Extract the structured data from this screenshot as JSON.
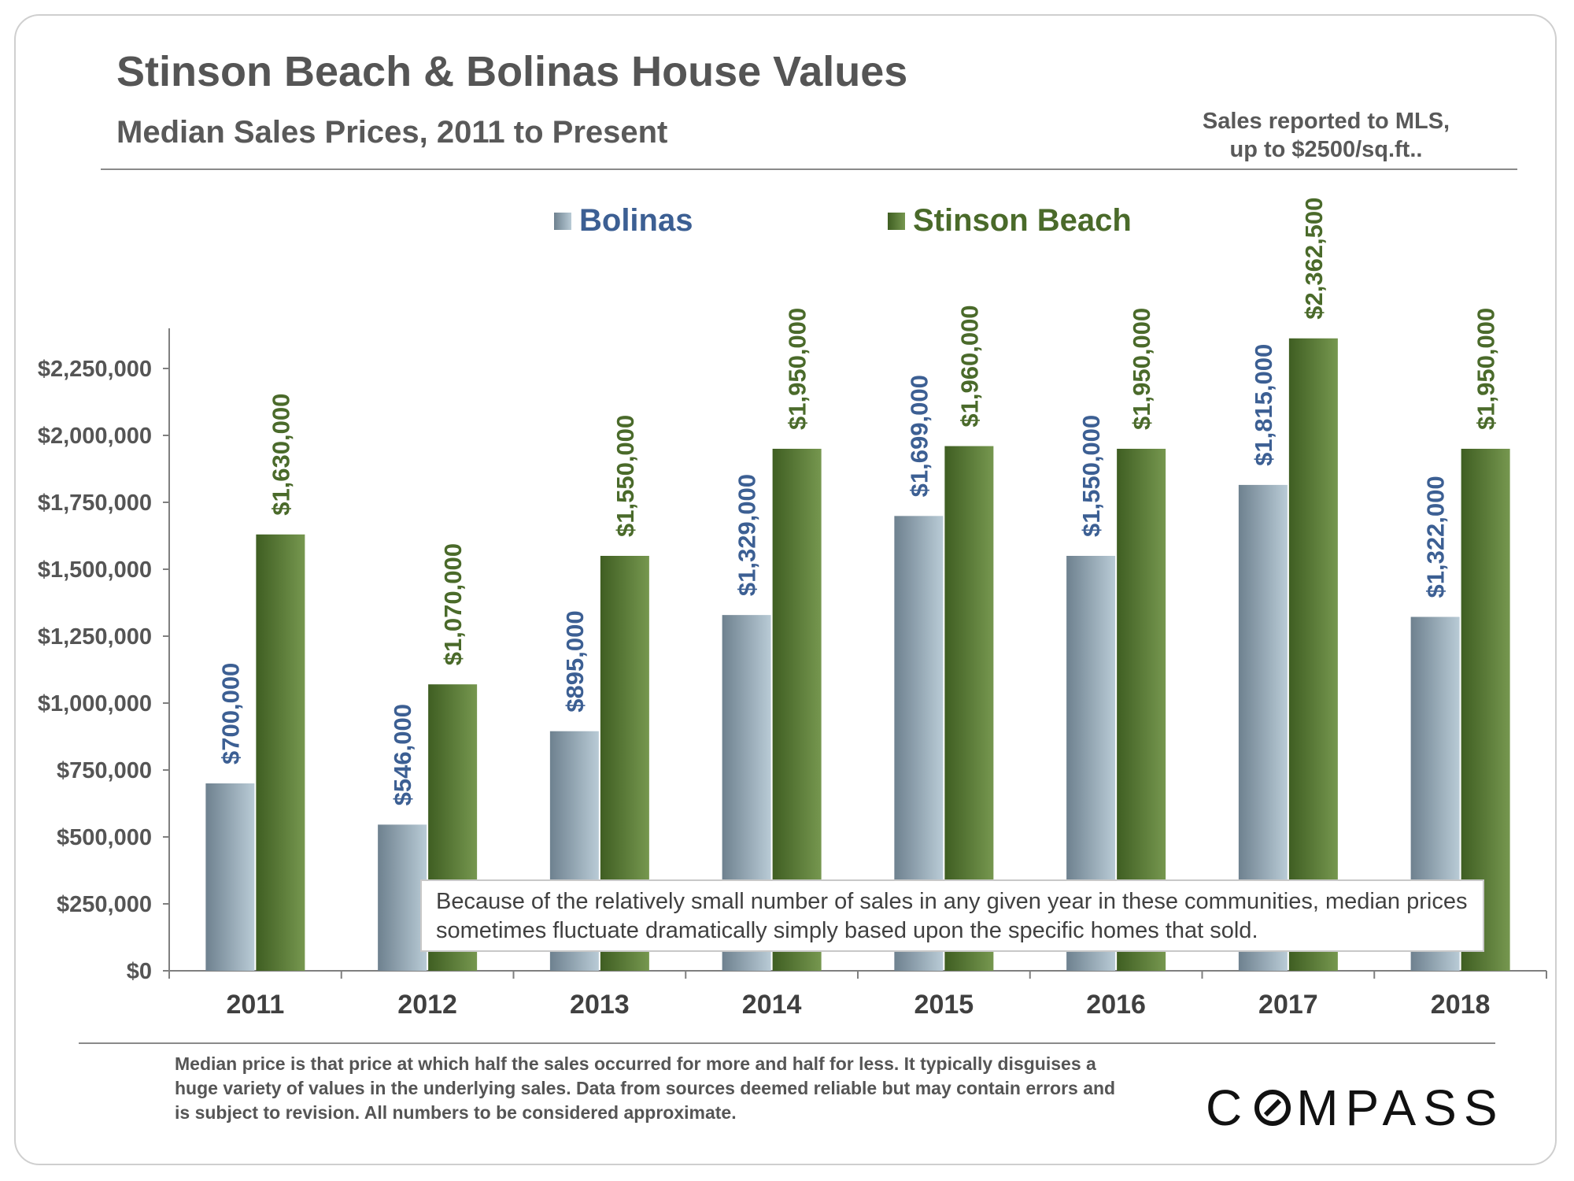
{
  "header": {
    "title": "Stinson Beach & Bolinas House Values",
    "subtitle": "Median Sales Prices, 2011 to Present",
    "note_line1": "Sales reported to MLS,",
    "note_line2": "up to $2500/sq.ft.."
  },
  "legend": {
    "bolinas": "Bolinas",
    "stinson": "Stinson Beach"
  },
  "callout": {
    "text": "Because of the relatively small number of sales in any given year in these communities, median prices sometimes fluctuate dramatically simply based upon the specific homes that sold."
  },
  "footer": {
    "text": "Median price is that price at which half the sales occurred for more and half for less. It typically disguises a huge variety of values in the underlying sales. Data from sources deemed reliable but may contain errors and is subject to revision. All numbers to be considered approximate."
  },
  "logo": {
    "before": "C",
    "after": "MPASS"
  },
  "colors": {
    "bolinas_text": "#3c5f93",
    "stinson_text": "#4a6a2a",
    "bolinas_bar_dark": "#6e818f",
    "bolinas_bar_light": "#b9cbd6",
    "stinson_bar_dark": "#3f5e22",
    "stinson_bar_light": "#76974f"
  },
  "chart_data": {
    "type": "bar",
    "title": "Stinson Beach & Bolinas House Values",
    "categories": [
      "2011",
      "2012",
      "2013",
      "2014",
      "2015",
      "2016",
      "2017",
      "2018"
    ],
    "series": [
      {
        "name": "Bolinas",
        "values": [
          700000,
          546000,
          895000,
          1329000,
          1699000,
          1550000,
          1815000,
          1322000
        ],
        "labels": [
          "$700,000",
          "$546,000",
          "$895,000",
          "$1,329,000",
          "$1,699,000",
          "$1,550,000",
          "$1,815,000",
          "$1,322,000"
        ]
      },
      {
        "name": "Stinson Beach",
        "values": [
          1630000,
          1070000,
          1550000,
          1950000,
          1960000,
          1950000,
          2362500,
          1950000
        ],
        "labels": [
          "$1,630,000",
          "$1,070,000",
          "$1,550,000",
          "$1,950,000",
          "$1,960,000",
          "$1,950,000",
          "$2,362,500",
          "$1,950,000"
        ]
      }
    ],
    "y_ticks": [
      0,
      250000,
      500000,
      750000,
      1000000,
      1250000,
      1500000,
      1750000,
      2000000,
      2250000
    ],
    "y_tick_labels": [
      "$0",
      "$250,000",
      "$500,000",
      "$750,000",
      "$1,000,000",
      "$1,250,000",
      "$1,500,000",
      "$1,750,000",
      "$2,000,000",
      "$2,250,000"
    ],
    "ylim": [
      0,
      2400000
    ],
    "xlabel": "",
    "ylabel": "",
    "grid": false,
    "legend": "top-center"
  }
}
